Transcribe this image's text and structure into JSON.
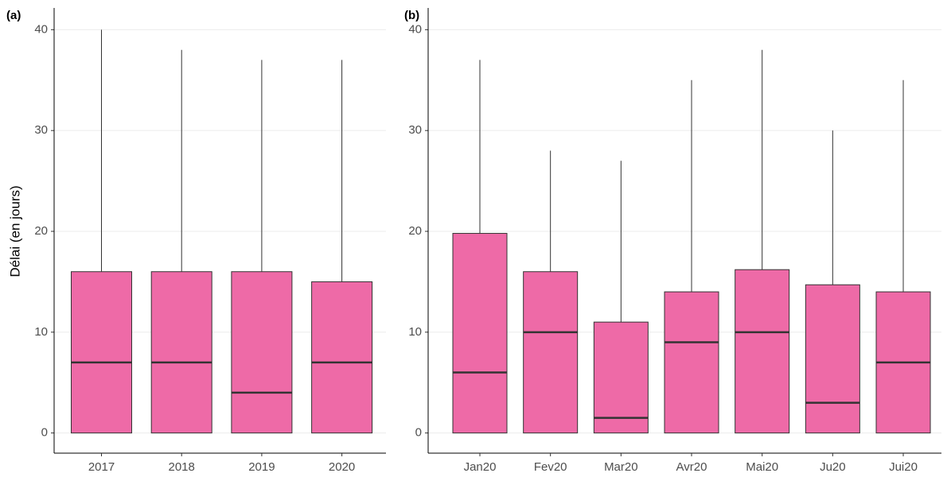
{
  "chart_data": [
    {
      "type": "box",
      "title": "(a)",
      "y_label": "Délai (en jours)",
      "categories": [
        "2017",
        "2018",
        "2019",
        "2020"
      ],
      "min": [
        0,
        0,
        0,
        0
      ],
      "q1": [
        0,
        0,
        0,
        0
      ],
      "median": [
        7,
        7,
        4,
        7
      ],
      "q3": [
        16,
        16,
        16,
        15
      ],
      "max": [
        40,
        38,
        37,
        37
      ],
      "color": "#ee6aa7",
      "ylim": [
        -2,
        42
      ],
      "yticks": [
        0,
        10,
        20,
        30,
        40
      ],
      "grid": true
    },
    {
      "type": "box",
      "title": "(b)",
      "categories": [
        "Jan20",
        "Fev20",
        "Mar20",
        "Avr20",
        "Mai20",
        "Ju20",
        "Jui20"
      ],
      "min": [
        0,
        0,
        0,
        0,
        0,
        0,
        0
      ],
      "q1": [
        0,
        0,
        0,
        0,
        0,
        0,
        0
      ],
      "median": [
        6,
        10,
        1.5,
        9,
        10,
        3,
        7
      ],
      "q3": [
        19.8,
        16,
        11,
        14,
        16.2,
        14.7,
        14
      ],
      "max": [
        37,
        28,
        27,
        35,
        38,
        30,
        35
      ],
      "color": "#ee6aa7",
      "ylim": [
        -2,
        42
      ],
      "yticks": [
        0,
        10,
        20,
        30,
        40
      ],
      "grid": true
    }
  ]
}
